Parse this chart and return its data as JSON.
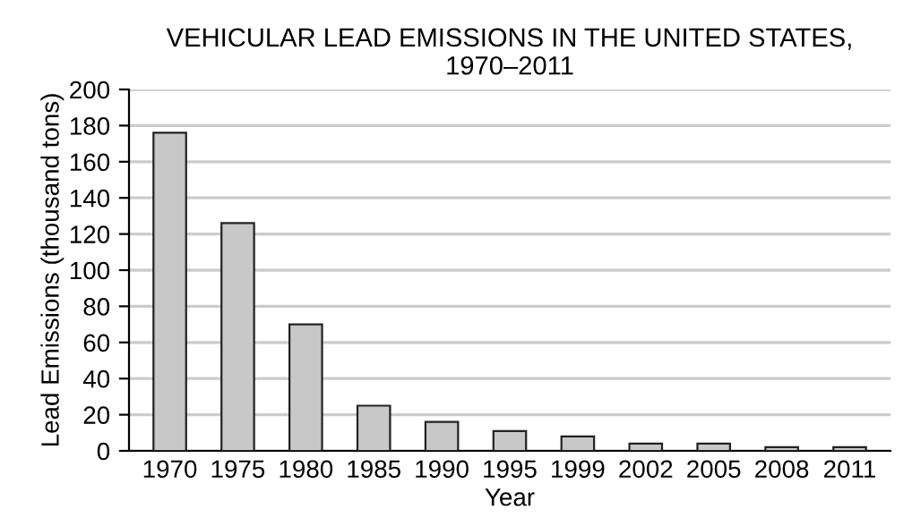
{
  "chart_data": {
    "type": "bar",
    "title": "VEHICULAR LEAD EMISSIONS IN THE UNITED STATES,\n1970–2011",
    "xlabel": "Year",
    "ylabel": "Lead Emissions (thousand tons)",
    "categories": [
      "1970",
      "1975",
      "1980",
      "1985",
      "1990",
      "1995",
      "1999",
      "2002",
      "2005",
      "2008",
      "2011"
    ],
    "values": [
      176,
      126,
      70,
      25,
      16,
      11,
      8,
      4,
      4,
      2,
      2
    ],
    "color": "#c8c8c8",
    "ylim": [
      0,
      200
    ],
    "yticks": [
      0,
      20,
      40,
      60,
      80,
      100,
      120,
      140,
      160,
      180,
      200
    ],
    "grid": "y"
  }
}
